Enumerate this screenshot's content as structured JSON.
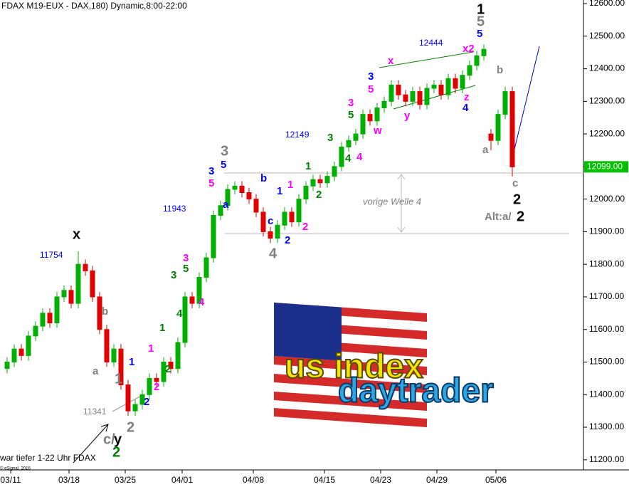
{
  "chart_data": {
    "type": "candlestick",
    "title": "FDAX M19-EUX - DAX,180) Dynamic,8:00-22:00",
    "open": [
      11480,
      11500,
      11540,
      11520,
      11580,
      11610,
      11650,
      11620,
      11700,
      11720,
      11680,
      11800,
      11780,
      11700,
      11600,
      11500,
      11540,
      11430,
      11350,
      11370,
      11400,
      11450,
      11440,
      11500,
      11480,
      11560,
      11700,
      11680,
      11760,
      11820,
      11950,
      11980,
      12030,
      12040,
      12020,
      12000,
      11960,
      11900,
      11880,
      11920,
      11960,
      11930,
      12000,
      12040,
      12060,
      12050,
      12070,
      12100,
      12160,
      12180,
      12200,
      12260,
      12240,
      12280,
      12300,
      12350,
      12320,
      12300,
      12330,
      12290,
      12340,
      12350,
      12320,
      12370,
      12340,
      12380,
      12410,
      12440,
      12200,
      12180,
      12260,
      12330
    ],
    "high": [
      11515,
      11555,
      11555,
      11595,
      11625,
      11665,
      11665,
      11715,
      11735,
      11735,
      11840,
      11815,
      11795,
      11715,
      11615,
      11555,
      11555,
      11445,
      11385,
      11415,
      11465,
      11465,
      11515,
      11515,
      11575,
      11715,
      11715,
      11775,
      11835,
      11965,
      11995,
      12045,
      12055,
      12055,
      12035,
      12015,
      11975,
      11915,
      11935,
      11975,
      11975,
      12015,
      12055,
      12075,
      12075,
      12085,
      12115,
      12175,
      12195,
      12215,
      12275,
      12275,
      12295,
      12315,
      12365,
      12365,
      12335,
      12345,
      12345,
      12355,
      12365,
      12365,
      12385,
      12385,
      12395,
      12425,
      12455,
      12475,
      12215,
      12275,
      12345,
      12345
    ],
    "low": [
      11465,
      11485,
      11505,
      11505,
      11565,
      11595,
      11605,
      11605,
      11685,
      11665,
      11665,
      11765,
      11685,
      11585,
      11485,
      11485,
      11415,
      11335,
      11335,
      11355,
      11385,
      11425,
      11425,
      11465,
      11465,
      11545,
      11665,
      11665,
      11745,
      11805,
      11935,
      11965,
      12015,
      12005,
      11985,
      11945,
      11885,
      11865,
      11865,
      11905,
      11915,
      11915,
      11985,
      12025,
      12035,
      12035,
      12055,
      12085,
      12145,
      12165,
      12185,
      12225,
      12225,
      12265,
      12285,
      12305,
      12285,
      12285,
      12275,
      12275,
      12325,
      12305,
      12305,
      12325,
      12325,
      12365,
      12395,
      12425,
      12150,
      12165,
      12245,
      12070
    ],
    "close": [
      11500,
      11540,
      11520,
      11580,
      11610,
      11650,
      11620,
      11700,
      11720,
      11680,
      11800,
      11780,
      11700,
      11600,
      11500,
      11540,
      11430,
      11350,
      11370,
      11400,
      11450,
      11440,
      11500,
      11480,
      11560,
      11700,
      11680,
      11760,
      11820,
      11950,
      11980,
      12030,
      12040,
      12020,
      12000,
      11960,
      11900,
      11880,
      11920,
      11960,
      11930,
      12000,
      12040,
      12060,
      12050,
      12070,
      12100,
      12160,
      12180,
      12200,
      12260,
      12240,
      12280,
      12300,
      12350,
      12320,
      12300,
      12330,
      12290,
      12340,
      12350,
      12320,
      12370,
      12340,
      12380,
      12410,
      12440,
      12460,
      12180,
      12260,
      12330,
      12099
    ],
    "up_color": "#00b000",
    "down_color": "#e00000",
    "xlim": [
      -1,
      81
    ],
    "xticks": [
      {
        "value": 0.5,
        "label": "03/11"
      },
      {
        "value": 8.7,
        "label": "03/18"
      },
      {
        "value": 16.6,
        "label": "03/25"
      },
      {
        "value": 24.6,
        "label": "04/01"
      },
      {
        "value": 34.6,
        "label": "04/08"
      },
      {
        "value": 44.6,
        "label": "04/15"
      },
      {
        "value": 52.5,
        "label": "04/23"
      },
      {
        "value": 60.4,
        "label": "04/29"
      },
      {
        "value": 68.7,
        "label": "05/06"
      }
    ],
    "ylim": [
      11169,
      12611
    ],
    "yticks": [
      {
        "value": 11200,
        "label": "11200.00"
      },
      {
        "value": 11300,
        "label": "11300.00"
      },
      {
        "value": 11400,
        "label": "11400.00"
      },
      {
        "value": 11500,
        "label": "11500.00"
      },
      {
        "value": 11600,
        "label": "11600.00"
      },
      {
        "value": 11700,
        "label": "11700.00"
      },
      {
        "value": 11800,
        "label": "11800.00"
      },
      {
        "value": 11900,
        "label": "11900.00"
      },
      {
        "value": 12000,
        "label": "12000.00"
      },
      {
        "value": 12100,
        "label": "12100.00"
      },
      {
        "value": 12200,
        "label": "12200.00"
      },
      {
        "value": 12300,
        "label": "12300.00"
      },
      {
        "value": 12400,
        "label": "12400.00"
      },
      {
        "value": 12500,
        "label": "12500.00"
      },
      {
        "value": 12600,
        "label": "12600.00"
      }
    ],
    "last_price": {
      "value": 12099,
      "label": "12099.00"
    },
    "annotations": [
      "1",
      "5",
      "5",
      "x2",
      "12444",
      "x",
      "3",
      "5",
      "3",
      "5",
      "w",
      "y",
      "z",
      "4",
      "b",
      "a",
      "c",
      "2",
      "Alt:a/",
      "2",
      "vorige Welle 4",
      "12149",
      "3",
      "4",
      "4",
      "1",
      "2",
      "3",
      "5",
      "3",
      "5",
      "a",
      "b",
      "1",
      "1",
      "c",
      "4",
      "2",
      "2",
      "11943",
      "x",
      "11754",
      "3",
      "3",
      "5",
      "4",
      "4",
      "1",
      "1",
      "2",
      "2",
      "1",
      "2",
      "b",
      "a",
      "1",
      "11341",
      "2",
      "c/",
      "y",
      "2",
      "war tiefer 1-22 Uhr FDAX",
      "© eSignal, 2016"
    ]
  },
  "logo": {
    "line1": "us index",
    "line2": "daytrader"
  }
}
